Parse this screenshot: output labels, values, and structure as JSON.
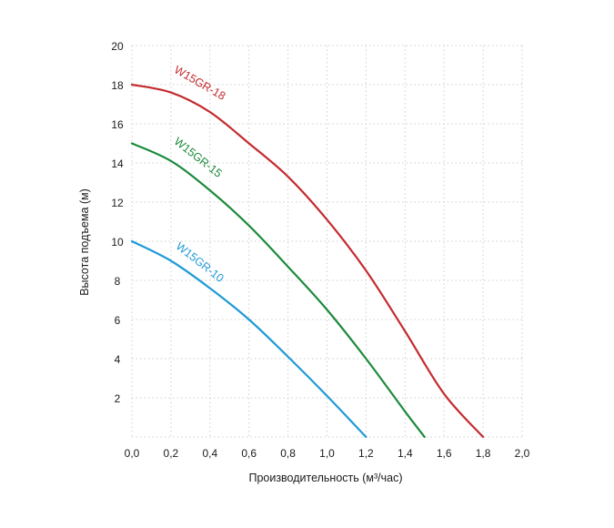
{
  "chart_data": {
    "type": "line",
    "xlabel": "Производительность (м³/час)",
    "ylabel": "Высота подъема (м)",
    "xlim": [
      0,
      2.0
    ],
    "ylim": [
      0,
      20
    ],
    "grid": true,
    "x_ticks": [
      {
        "value": 0.0,
        "label": "0,0"
      },
      {
        "value": 0.2,
        "label": "0,2"
      },
      {
        "value": 0.4,
        "label": "0,4"
      },
      {
        "value": 0.6,
        "label": "0,6"
      },
      {
        "value": 0.8,
        "label": "0,8"
      },
      {
        "value": 1.0,
        "label": "1,0"
      },
      {
        "value": 1.2,
        "label": "1,2"
      },
      {
        "value": 1.4,
        "label": "1,4"
      },
      {
        "value": 1.6,
        "label": "1,6"
      },
      {
        "value": 1.8,
        "label": "1,8"
      },
      {
        "value": 2.0,
        "label": "2,0"
      }
    ],
    "y_ticks": [
      {
        "value": 2,
        "label": "2"
      },
      {
        "value": 4,
        "label": "4"
      },
      {
        "value": 6,
        "label": "6"
      },
      {
        "value": 8,
        "label": "8"
      },
      {
        "value": 10,
        "label": "10"
      },
      {
        "value": 12,
        "label": "12"
      },
      {
        "value": 14,
        "label": "14"
      },
      {
        "value": 16,
        "label": "16"
      },
      {
        "value": 18,
        "label": "18"
      },
      {
        "value": 20,
        "label": "20"
      }
    ],
    "series": [
      {
        "name": "W15GR-18",
        "color": "#c42b30",
        "x": [
          0.0,
          0.2,
          0.4,
          0.6,
          0.8,
          1.0,
          1.2,
          1.4,
          1.6,
          1.8
        ],
        "y": [
          18.0,
          17.6,
          16.6,
          15.0,
          13.3,
          11.1,
          8.5,
          5.4,
          2.2,
          0.0
        ]
      },
      {
        "name": "W15GR-15",
        "color": "#1c8a3c",
        "x": [
          0.0,
          0.2,
          0.4,
          0.6,
          0.8,
          1.0,
          1.2,
          1.4,
          1.5
        ],
        "y": [
          15.0,
          14.1,
          12.6,
          10.8,
          8.7,
          6.5,
          4.0,
          1.3,
          0.0
        ]
      },
      {
        "name": "W15GR-10",
        "color": "#1f9ad6",
        "x": [
          0.0,
          0.2,
          0.4,
          0.6,
          0.8,
          1.0,
          1.2
        ],
        "y": [
          10.0,
          9.0,
          7.6,
          6.0,
          4.1,
          2.1,
          0.0
        ]
      }
    ]
  }
}
